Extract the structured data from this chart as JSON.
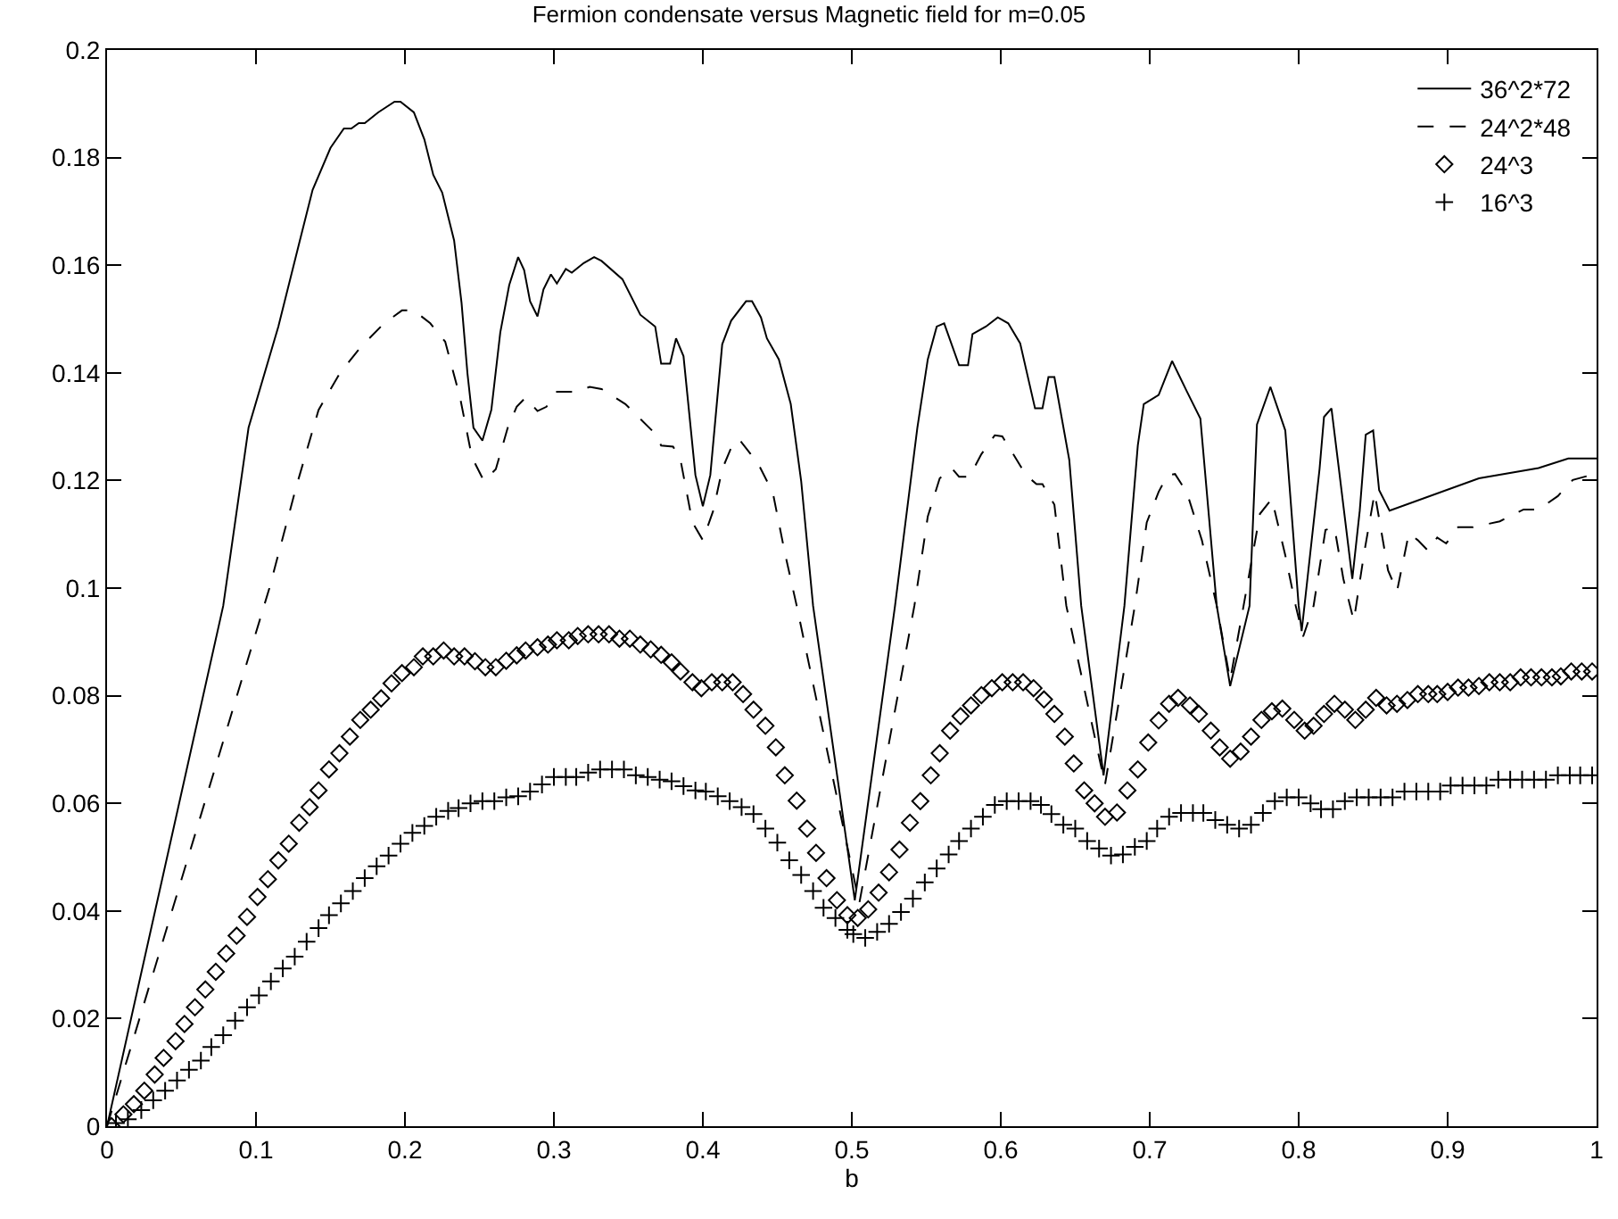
{
  "chart_data": {
    "type": "line",
    "title": "Fermion condensate versus Magnetic field for m=0.05",
    "xlabel": "b",
    "xlim": [
      0,
      1
    ],
    "xticks": [
      0,
      0.1,
      0.2,
      0.3,
      0.4,
      0.5,
      0.6,
      0.7,
      0.8,
      0.9,
      1
    ],
    "ylim": [
      0,
      0.2
    ],
    "yticks": [
      0,
      0.02,
      0.04,
      0.06,
      0.08,
      0.1,
      0.12,
      0.14,
      0.16,
      0.18,
      0.2
    ],
    "grid": false,
    "legend": "top right",
    "series": [
      {
        "name": "36^2*72",
        "line_style": "solid",
        "color": "#000000",
        "x": [
          0,
          0.078,
          0.095,
          0.115,
          0.129,
          0.138,
          0.15,
          0.159,
          0.164,
          0.169,
          0.173,
          0.182,
          0.193,
          0.197,
          0.206,
          0.213,
          0.219,
          0.225,
          0.233,
          0.238,
          0.242,
          0.246,
          0.252,
          0.258,
          0.264,
          0.27,
          0.276,
          0.28,
          0.284,
          0.289,
          0.293,
          0.298,
          0.302,
          0.308,
          0.312,
          0.32,
          0.327,
          0.332,
          0.346,
          0.358,
          0.368,
          0.372,
          0.378,
          0.382,
          0.387,
          0.395,
          0.4,
          0.405,
          0.413,
          0.419,
          0.429,
          0.433,
          0.439,
          0.443,
          0.451,
          0.459,
          0.466,
          0.474,
          0.502,
          0.529,
          0.544,
          0.551,
          0.557,
          0.562,
          0.572,
          0.578,
          0.581,
          0.59,
          0.598,
          0.605,
          0.613,
          0.623,
          0.628,
          0.632,
          0.636,
          0.646,
          0.654,
          0.669,
          0.683,
          0.692,
          0.696,
          0.706,
          0.715,
          0.725,
          0.734,
          0.745,
          0.754,
          0.767,
          0.772,
          0.781,
          0.791,
          0.8,
          0.802,
          0.814,
          0.817,
          0.822,
          0.827,
          0.836,
          0.841,
          0.845,
          0.85,
          0.854,
          0.861,
          0.921,
          0.961,
          0.981,
          1.0
        ],
        "values": [
          0,
          0.0967,
          0.1298,
          0.1486,
          0.1641,
          0.174,
          0.1818,
          0.1854,
          0.1854,
          0.1864,
          0.1864,
          0.1884,
          0.1904,
          0.1904,
          0.1884,
          0.1834,
          0.1768,
          0.1735,
          0.1646,
          0.153,
          0.1398,
          0.1298,
          0.1274,
          0.1331,
          0.1475,
          0.1563,
          0.1615,
          0.1591,
          0.1533,
          0.1505,
          0.1555,
          0.1583,
          0.1566,
          0.1593,
          0.1586,
          0.1604,
          0.1615,
          0.1608,
          0.1574,
          0.1508,
          0.1486,
          0.1417,
          0.1417,
          0.1464,
          0.1431,
          0.121,
          0.1152,
          0.121,
          0.1453,
          0.1497,
          0.1533,
          0.1533,
          0.1503,
          0.1464,
          0.1425,
          0.1342,
          0.1199,
          0.0967,
          0.042,
          0.0967,
          0.1298,
          0.1425,
          0.1486,
          0.1492,
          0.1414,
          0.1414,
          0.1472,
          0.1486,
          0.1503,
          0.1492,
          0.1455,
          0.1334,
          0.1334,
          0.1392,
          0.1392,
          0.1238,
          0.0967,
          0.0652,
          0.0967,
          0.1265,
          0.1342,
          0.1359,
          0.1422,
          0.1365,
          0.1315,
          0.0967,
          0.0818,
          0.0967,
          0.1304,
          0.1374,
          0.1293,
          0.0967,
          0.092,
          0.1221,
          0.1318,
          0.1334,
          0.1221,
          0.1017,
          0.1144,
          0.1285,
          0.1293,
          0.1182,
          0.1144,
          0.1204,
          0.1223,
          0.1241,
          0.1241
        ]
      },
      {
        "name": "24^2*48",
        "line_style": "dashed",
        "color": "#000000",
        "x": [
          0,
          0.109,
          0.127,
          0.142,
          0.156,
          0.17,
          0.186,
          0.198,
          0.206,
          0.217,
          0.227,
          0.237,
          0.245,
          0.253,
          0.261,
          0.269,
          0.275,
          0.281,
          0.289,
          0.295,
          0.302,
          0.316,
          0.324,
          0.332,
          0.348,
          0.368,
          0.372,
          0.38,
          0.385,
          0.393,
          0.4,
          0.407,
          0.413,
          0.421,
          0.425,
          0.437,
          0.447,
          0.455,
          0.463,
          0.505,
          0.542,
          0.551,
          0.559,
          0.567,
          0.572,
          0.579,
          0.587,
          0.596,
          0.601,
          0.617,
          0.624,
          0.628,
          0.636,
          0.644,
          0.67,
          0.69,
          0.698,
          0.706,
          0.712,
          0.717,
          0.725,
          0.735,
          0.745,
          0.754,
          0.763,
          0.774,
          0.782,
          0.791,
          0.798,
          0.803,
          0.81,
          0.818,
          0.824,
          0.83,
          0.837,
          0.844,
          0.851,
          0.86,
          0.866,
          0.874,
          0.88,
          0.887,
          0.893,
          0.899,
          0.907,
          0.917,
          0.935,
          0.951,
          0.961,
          0.974,
          0.984,
          0.996,
          1.0
        ],
        "values": [
          0,
          0.1,
          0.1188,
          0.1331,
          0.1398,
          0.1447,
          0.1492,
          0.1516,
          0.1516,
          0.1492,
          0.1458,
          0.1354,
          0.1243,
          0.1199,
          0.1221,
          0.1298,
          0.1337,
          0.1354,
          0.1329,
          0.1337,
          0.1365,
          0.1365,
          0.1374,
          0.137,
          0.1342,
          0.1287,
          0.1265,
          0.1263,
          0.1238,
          0.1122,
          0.1089,
          0.1144,
          0.1221,
          0.1274,
          0.1274,
          0.1232,
          0.1177,
          0.1066,
          0.0967,
          0.0414,
          0.0967,
          0.1133,
          0.1204,
          0.1223,
          0.1207,
          0.1207,
          0.1249,
          0.1284,
          0.1282,
          0.121,
          0.1193,
          0.1193,
          0.1155,
          0.0967,
          0.0635,
          0.0967,
          0.1122,
          0.1179,
          0.121,
          0.1212,
          0.1177,
          0.1089,
          0.0967,
          0.0829,
          0.0967,
          0.1138,
          0.1166,
          0.1061,
          0.0967,
          0.091,
          0.0967,
          0.1108,
          0.1113,
          0.1017,
          0.0939,
          0.1066,
          0.1177,
          0.1033,
          0.0994,
          0.1102,
          0.1089,
          0.1069,
          0.1094,
          0.1083,
          0.1113,
          0.1113,
          0.1124,
          0.1146,
          0.1146,
          0.1171,
          0.1201,
          0.121,
          0.121
        ]
      },
      {
        "name": "24^3",
        "type": "scatter",
        "marker": "diamond",
        "color": "#000000",
        "x": [
          0.003,
          0.011,
          0.018,
          0.025,
          0.032,
          0.038,
          0.046,
          0.052,
          0.059,
          0.066,
          0.073,
          0.08,
          0.087,
          0.094,
          0.101,
          0.108,
          0.115,
          0.122,
          0.129,
          0.136,
          0.142,
          0.149,
          0.156,
          0.163,
          0.17,
          0.177,
          0.184,
          0.191,
          0.198,
          0.206,
          0.212,
          0.219,
          0.226,
          0.233,
          0.24,
          0.247,
          0.254,
          0.261,
          0.268,
          0.275,
          0.281,
          0.289,
          0.296,
          0.302,
          0.31,
          0.316,
          0.323,
          0.33,
          0.337,
          0.344,
          0.351,
          0.358,
          0.365,
          0.372,
          0.379,
          0.385,
          0.393,
          0.399,
          0.406,
          0.413,
          0.42,
          0.427,
          0.434,
          0.442,
          0.449,
          0.455,
          0.463,
          0.47,
          0.476,
          0.483,
          0.49,
          0.497,
          0.504,
          0.511,
          0.518,
          0.525,
          0.532,
          0.539,
          0.546,
          0.553,
          0.559,
          0.566,
          0.573,
          0.58,
          0.587,
          0.594,
          0.601,
          0.608,
          0.615,
          0.622,
          0.629,
          0.636,
          0.643,
          0.649,
          0.656,
          0.663,
          0.67,
          0.678,
          0.685,
          0.692,
          0.699,
          0.706,
          0.713,
          0.719,
          0.727,
          0.733,
          0.741,
          0.747,
          0.754,
          0.761,
          0.768,
          0.775,
          0.782,
          0.789,
          0.797,
          0.804,
          0.81,
          0.817,
          0.824,
          0.831,
          0.838,
          0.845,
          0.852,
          0.859,
          0.866,
          0.873,
          0.88,
          0.887,
          0.893,
          0.9,
          0.907,
          0.914,
          0.921,
          0.928,
          0.935,
          0.942,
          0.949,
          0.956,
          0.963,
          0.97,
          0.976,
          0.983,
          0.99,
          0.997
        ],
        "values": [
          0,
          0.0022,
          0.0041,
          0.0066,
          0.0096,
          0.0127,
          0.0158,
          0.019,
          0.0221,
          0.0254,
          0.0287,
          0.0321,
          0.0354,
          0.0389,
          0.0426,
          0.0459,
          0.0494,
          0.0525,
          0.0564,
          0.0593,
          0.0624,
          0.0663,
          0.0693,
          0.0724,
          0.0755,
          0.0774,
          0.0795,
          0.0823,
          0.0842,
          0.0853,
          0.0873,
          0.0873,
          0.0884,
          0.0873,
          0.0873,
          0.0864,
          0.0853,
          0.0853,
          0.0865,
          0.0875,
          0.0884,
          0.089,
          0.0895,
          0.0903,
          0.0903,
          0.0911,
          0.0914,
          0.0914,
          0.0914,
          0.0906,
          0.0906,
          0.0895,
          0.0886,
          0.0876,
          0.0862,
          0.0845,
          0.0825,
          0.0814,
          0.0825,
          0.0825,
          0.0825,
          0.0803,
          0.0774,
          0.0744,
          0.0704,
          0.0652,
          0.0605,
          0.0553,
          0.0508,
          0.0461,
          0.042,
          0.0392,
          0.0387,
          0.0403,
          0.0434,
          0.0472,
          0.0514,
          0.0564,
          0.0604,
          0.0652,
          0.0693,
          0.0735,
          0.0762,
          0.0782,
          0.0801,
          0.0814,
          0.0825,
          0.0825,
          0.0825,
          0.0814,
          0.0793,
          0.0766,
          0.0724,
          0.0674,
          0.0624,
          0.06,
          0.0575,
          0.0583,
          0.0624,
          0.0663,
          0.0713,
          0.0754,
          0.0785,
          0.0796,
          0.0782,
          0.0766,
          0.0735,
          0.0704,
          0.0683,
          0.0696,
          0.0724,
          0.0755,
          0.0771,
          0.0776,
          0.0755,
          0.0735,
          0.0744,
          0.0766,
          0.0785,
          0.0774,
          0.0755,
          0.0774,
          0.0796,
          0.0782,
          0.0785,
          0.0792,
          0.0803,
          0.0803,
          0.0803,
          0.0807,
          0.0815,
          0.0815,
          0.0818,
          0.0825,
          0.0825,
          0.0825,
          0.0834,
          0.0834,
          0.0834,
          0.0834,
          0.0836,
          0.0845,
          0.0845,
          0.0845
        ]
      },
      {
        "name": "16^3",
        "type": "scatter",
        "marker": "cross",
        "color": "#000000",
        "x": [
          0.006,
          0.014,
          0.023,
          0.031,
          0.039,
          0.047,
          0.055,
          0.063,
          0.07,
          0.078,
          0.086,
          0.094,
          0.102,
          0.11,
          0.118,
          0.126,
          0.134,
          0.142,
          0.149,
          0.157,
          0.165,
          0.173,
          0.181,
          0.189,
          0.197,
          0.205,
          0.213,
          0.221,
          0.229,
          0.236,
          0.244,
          0.252,
          0.26,
          0.268,
          0.276,
          0.284,
          0.292,
          0.3,
          0.308,
          0.315,
          0.323,
          0.331,
          0.339,
          0.347,
          0.355,
          0.363,
          0.371,
          0.379,
          0.387,
          0.395,
          0.402,
          0.41,
          0.418,
          0.426,
          0.434,
          0.442,
          0.45,
          0.458,
          0.466,
          0.474,
          0.481,
          0.489,
          0.497,
          0.501,
          0.509,
          0.517,
          0.525,
          0.533,
          0.541,
          0.549,
          0.557,
          0.565,
          0.572,
          0.58,
          0.588,
          0.596,
          0.604,
          0.612,
          0.62,
          0.627,
          0.634,
          0.642,
          0.65,
          0.658,
          0.666,
          0.674,
          0.682,
          0.69,
          0.698,
          0.705,
          0.713,
          0.721,
          0.729,
          0.736,
          0.744,
          0.752,
          0.76,
          0.768,
          0.776,
          0.784,
          0.792,
          0.8,
          0.808,
          0.815,
          0.823,
          0.831,
          0.839,
          0.847,
          0.855,
          0.863,
          0.871,
          0.879,
          0.887,
          0.895,
          0.902,
          0.91,
          0.918,
          0.926,
          0.934,
          0.942,
          0.95,
          0.958,
          0.966,
          0.974,
          0.982,
          0.989,
          0.997
        ],
        "values": [
          0.0006,
          0.0013,
          0.003,
          0.0048,
          0.0066,
          0.0085,
          0.0105,
          0.0122,
          0.0147,
          0.0169,
          0.0196,
          0.0221,
          0.0243,
          0.0269,
          0.0293,
          0.0315,
          0.0343,
          0.0368,
          0.0392,
          0.0414,
          0.0437,
          0.0461,
          0.0483,
          0.0503,
          0.0525,
          0.0545,
          0.0558,
          0.0575,
          0.0586,
          0.0591,
          0.06,
          0.0604,
          0.0604,
          0.0611,
          0.0613,
          0.0622,
          0.0635,
          0.0649,
          0.0649,
          0.0649,
          0.0657,
          0.0663,
          0.0663,
          0.0663,
          0.0652,
          0.0649,
          0.0644,
          0.0641,
          0.0632,
          0.0624,
          0.0622,
          0.0613,
          0.0604,
          0.0593,
          0.058,
          0.0553,
          0.0527,
          0.0494,
          0.0467,
          0.0437,
          0.0406,
          0.0387,
          0.0365,
          0.0357,
          0.035,
          0.0361,
          0.0376,
          0.0398,
          0.0423,
          0.0453,
          0.0479,
          0.0505,
          0.053,
          0.0553,
          0.0575,
          0.0597,
          0.0604,
          0.0604,
          0.0604,
          0.0597,
          0.058,
          0.056,
          0.0553,
          0.053,
          0.0516,
          0.0503,
          0.0505,
          0.0519,
          0.053,
          0.0553,
          0.0575,
          0.0582,
          0.0582,
          0.0582,
          0.0569,
          0.056,
          0.0553,
          0.056,
          0.0582,
          0.0604,
          0.0611,
          0.0611,
          0.06,
          0.0589,
          0.0589,
          0.0604,
          0.0611,
          0.0611,
          0.0611,
          0.0611,
          0.0622,
          0.0622,
          0.0622,
          0.0622,
          0.0633,
          0.0633,
          0.0633,
          0.0633,
          0.0644,
          0.0644,
          0.0644,
          0.0644,
          0.0644,
          0.0652,
          0.0652,
          0.0652,
          0.0652
        ]
      }
    ]
  }
}
